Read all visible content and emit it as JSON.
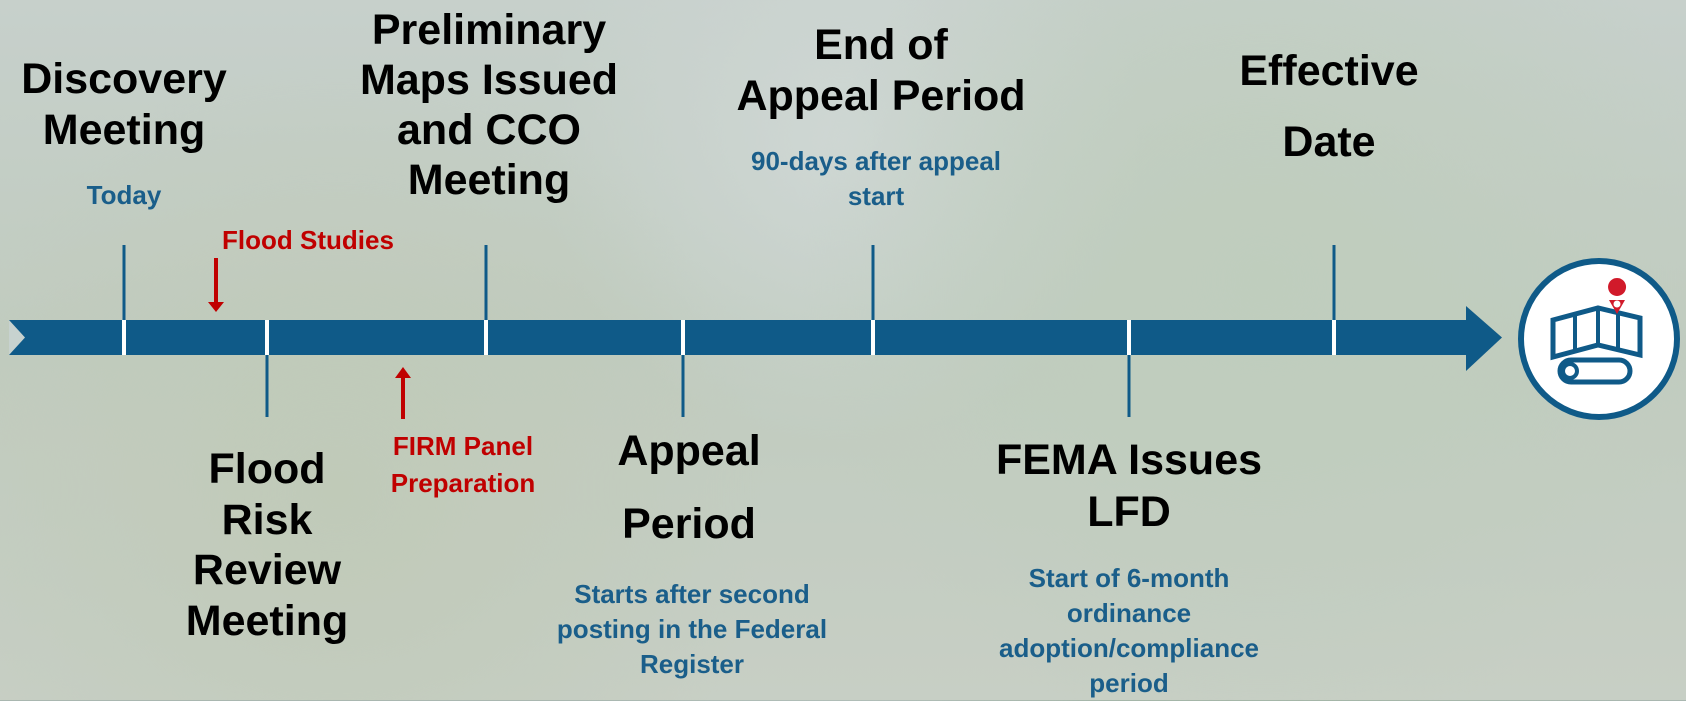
{
  "milestones": [
    {
      "title_lines": [
        "Discovery",
        "Meeting"
      ],
      "note_lines": [
        "Today"
      ]
    },
    {
      "title_lines": [
        "Flood",
        "Risk",
        "Review",
        "Meeting"
      ],
      "note_lines": []
    },
    {
      "title_lines": [
        "Preliminary",
        "Maps Issued",
        "and CCO",
        "Meeting"
      ],
      "note_lines": []
    },
    {
      "title_lines": [
        "Appeal",
        "Period"
      ],
      "note_lines": [
        "Starts after second",
        "posting in the Federal",
        "Register"
      ]
    },
    {
      "title_lines": [
        "End of",
        "Appeal Period"
      ],
      "note_lines": [
        "90-days after appeal",
        "start"
      ]
    },
    {
      "title_lines": [
        "FEMA Issues",
        "LFD"
      ],
      "note_lines": [
        "Start of 6-month",
        "ordinance",
        "adoption/compliance",
        "period"
      ]
    },
    {
      "title_lines": [
        "Effective",
        "Date"
      ],
      "note_lines": []
    }
  ],
  "annotations": [
    {
      "lines": [
        "Flood Studies"
      ]
    },
    {
      "lines": [
        "FIRM Panel",
        "Preparation"
      ]
    }
  ]
}
